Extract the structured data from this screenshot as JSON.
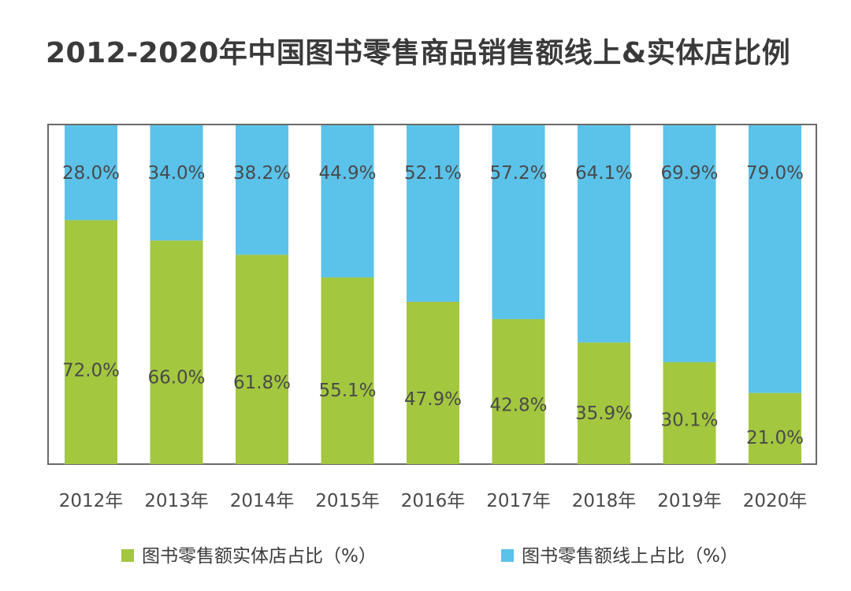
{
  "chart_data": {
    "type": "bar",
    "stacked": true,
    "title": "2012-2020年中国图书零售商品销售额线上&实体店比例",
    "categories": [
      "2012年",
      "2013年",
      "2014年",
      "2015年",
      "2016年",
      "2017年",
      "2018年",
      "2019年",
      "2020年"
    ],
    "ylim": [
      0,
      100
    ],
    "grid": false,
    "legend_position": "bottom",
    "series": [
      {
        "name": "图书零售额实体店占比（%）",
        "color": "#a3c73f",
        "values": [
          72.0,
          66.0,
          61.8,
          55.1,
          47.9,
          42.8,
          35.9,
          30.1,
          21.0
        ],
        "labels": [
          "72.0%",
          "66.0%",
          "61.8%",
          "55.1%",
          "47.9%",
          "42.8%",
          "35.9%",
          "30.1%",
          "21.0%"
        ]
      },
      {
        "name": "图书零售额线上占比（%）",
        "color": "#5bc2ea",
        "values": [
          28.0,
          34.0,
          38.2,
          44.9,
          52.1,
          57.2,
          64.1,
          69.9,
          79.0
        ],
        "labels": [
          "28.0%",
          "34.0%",
          "38.2%",
          "44.9%",
          "52.1%",
          "57.2%",
          "64.1%",
          "69.9%",
          "79.0%"
        ]
      }
    ]
  }
}
